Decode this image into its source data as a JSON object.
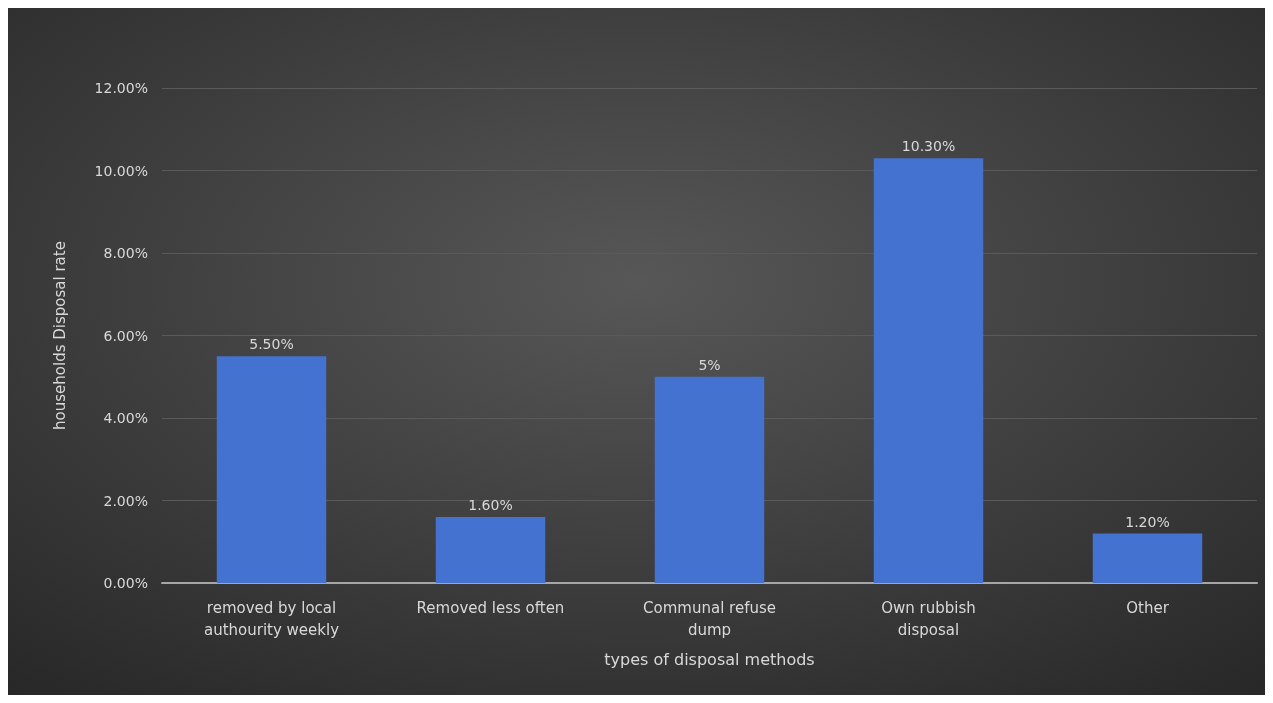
{
  "chart_data": {
    "type": "bar",
    "xlabel": "types of disposal methods",
    "ylabel": "households Disposal rate",
    "categories": [
      "removed by local\nauthourity weekly",
      "Removed less often",
      "Communal refuse\ndump",
      "Own rubbish\ndisposal",
      "Other"
    ],
    "values": [
      5.5,
      1.6,
      5,
      10.3,
      1.2
    ],
    "value_labels": [
      "5.50%",
      "1.60%",
      "5%",
      "10.30%",
      "1.20%"
    ],
    "color": "#4372d0",
    "ylim": [
      0,
      12
    ],
    "yticks": [
      {
        "value": 0,
        "label": "0.00%"
      },
      {
        "value": 2,
        "label": "2.00%"
      },
      {
        "value": 4,
        "label": "4.00%"
      },
      {
        "value": 6,
        "label": "6.00%"
      },
      {
        "value": 8,
        "label": "8.00%"
      },
      {
        "value": 10,
        "label": "10.00%"
      },
      {
        "value": 12,
        "label": "12.00%"
      }
    ],
    "grid": "y"
  }
}
